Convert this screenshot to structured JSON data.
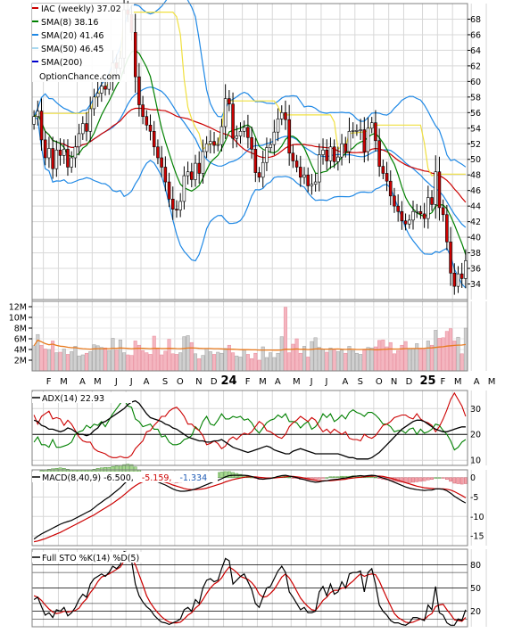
{
  "price_panel": {
    "legend": [
      {
        "label": "IAC (weekly) 37.02",
        "color": "#cc0000"
      },
      {
        "label": "SMA(8) 38.16",
        "color": "#008000"
      },
      {
        "label": "SMA(20) 41.46",
        "color": "#1e88e5"
      },
      {
        "label": "SMA(50) 46.45",
        "color": "#a8d8f0"
      },
      {
        "label": "SMA(200)",
        "color": "#0000cc"
      }
    ],
    "watermark": "OptionChance.com",
    "y_ticks": [
      34,
      36,
      38,
      40,
      42,
      44,
      46,
      48,
      50,
      52,
      54,
      56,
      58,
      60,
      62,
      64,
      66,
      68
    ],
    "ylim": [
      32,
      70
    ]
  },
  "volume_panel": {
    "ticks": [
      "2M",
      "4M",
      "6M",
      "8M",
      "10M",
      "12M"
    ],
    "tick_values": [
      2,
      4,
      6,
      8,
      10,
      12
    ]
  },
  "x_axis": {
    "labels": [
      {
        "text": "F",
        "i": 3
      },
      {
        "text": "M",
        "i": 7
      },
      {
        "text": "A",
        "i": 12
      },
      {
        "text": "M",
        "i": 16
      },
      {
        "text": "J",
        "i": 21
      },
      {
        "text": "J",
        "i": 25
      },
      {
        "text": "A",
        "i": 29
      },
      {
        "text": "S",
        "i": 34
      },
      {
        "text": "O",
        "i": 38
      },
      {
        "text": "N",
        "i": 43
      },
      {
        "text": "D",
        "i": 47
      },
      {
        "text": "24",
        "i": 51,
        "bold": true
      },
      {
        "text": "F",
        "i": 56
      },
      {
        "text": "M",
        "i": 60
      },
      {
        "text": "A",
        "i": 64
      },
      {
        "text": "M",
        "i": 69
      },
      {
        "text": "J",
        "i": 73
      },
      {
        "text": "J",
        "i": 77
      },
      {
        "text": "A",
        "i": 82
      },
      {
        "text": "S",
        "i": 86
      },
      {
        "text": "O",
        "i": 91
      },
      {
        "text": "N",
        "i": 95
      },
      {
        "text": "D",
        "i": 99
      },
      {
        "text": "25",
        "i": 104,
        "bold": true
      },
      {
        "text": "F",
        "i": 108
      },
      {
        "text": "M",
        "i": 112
      },
      {
        "text": "A",
        "i": 117
      },
      {
        "text": "M",
        "i": 121
      }
    ]
  },
  "adx_panel": {
    "title": "ADX(14) 22.93",
    "y_ticks": [
      10,
      20,
      30
    ],
    "ylim": [
      8,
      37
    ]
  },
  "macd_panel": {
    "title": "MACD(8,40,9) -6.500,",
    "value1": "-5.159,",
    "value1_color": "#cc0000",
    "value2": "-1.334",
    "value2_color": "#1e5ab4",
    "y_ticks": [
      0,
      -5,
      -10,
      -15
    ],
    "ylim": [
      -17.5,
      2
    ]
  },
  "sto_panel": {
    "title": "Full STO %K(14) %D(5)",
    "y_ticks": [
      20,
      50,
      80
    ],
    "ylim": [
      0,
      100
    ]
  },
  "chart_data": {
    "type": "candlestick",
    "title": "IAC (weekly)",
    "series": [
      {
        "name": "IAC (weekly)",
        "close": [
          55.5,
          56.2,
          52.5,
          50.2,
          51.4,
          48.8,
          51.2,
          50.5,
          51.3,
          49.0,
          50.2,
          51.6,
          53.3,
          54.6,
          53.6,
          56.5,
          58.0,
          58.5,
          59.4,
          59.0,
          60.2,
          62.4,
          61.7,
          63.0,
          69.2,
          68.6,
          66.3,
          60.6,
          57.0,
          55.5,
          54.4,
          53.6,
          51.6,
          50.2,
          49.0,
          47.1,
          44.9,
          43.6,
          43.5,
          44.6,
          47.9,
          48.4,
          47.4,
          49.5,
          48.2,
          51.0,
          52.0,
          52.3,
          51.8,
          51.9,
          54.2,
          57.8,
          57.1,
          52.7,
          53.0,
          53.6,
          54.1,
          52.8,
          51.3,
          48.3,
          47.7,
          49.6,
          51.5,
          51.9,
          53.5,
          55.2,
          56.0,
          55.1,
          50.8,
          49.8,
          49.0,
          47.7,
          48.0,
          46.6,
          46.8,
          47.1,
          50.6,
          51.2,
          49.8,
          51.6,
          49.7,
          50.3,
          52.0,
          51.0,
          53.6,
          53.7,
          53.7,
          53.8,
          51.0,
          54.0,
          54.7,
          52.4,
          49.1,
          48.2,
          47.2,
          45.3,
          44.0,
          43.3,
          42.1,
          41.7,
          42.2,
          43.3,
          43.3,
          43.0,
          42.4,
          45.1,
          44.2,
          48.4,
          43.8,
          42.9,
          39.4,
          35.4,
          33.7,
          35.3,
          34.7,
          37.0
        ]
      },
      {
        "name": "SMA(8)",
        "value": 38.16
      },
      {
        "name": "SMA(20)",
        "value": 41.46
      },
      {
        "name": "SMA(50)",
        "value": 46.45
      },
      {
        "name": "SMA(200)",
        "value": null
      }
    ],
    "volume_millions": [
      4.7,
      6.8,
      4.8,
      4.1,
      4.0,
      5.6,
      3.4,
      3.5,
      4.1,
      3.1,
      3.6,
      4.6,
      2.8,
      3.0,
      3.3,
      3.6,
      4.9,
      4.7,
      4.4,
      4.3,
      3.8,
      6.1,
      3.9,
      5.8,
      3.4,
      3.0,
      2.9,
      5.6,
      4.8,
      3.8,
      3.4,
      3.1,
      6.5,
      4.3,
      3.0,
      3.7,
      5.9,
      3.2,
      3.1,
      3.4,
      6.4,
      6.6,
      5.3,
      3.2,
      2.3,
      2.9,
      4.2,
      3.6,
      3.1,
      3.5,
      3.3,
      4.2,
      4.8,
      3.4,
      2.8,
      2.6,
      3.9,
      3.1,
      2.3,
      3.3,
      2.0,
      4.5,
      2.5,
      3.4,
      2.5,
      3.3,
      6.4,
      11.9,
      3.4,
      5.0,
      6.0,
      3.3,
      4.6,
      2.6,
      5.5,
      6.2,
      4.4,
      4.0,
      3.5,
      4.3,
      3.9,
      3.6,
      3.9,
      3.3,
      4.6,
      3.8,
      3.3,
      3.1,
      3.9,
      4.4,
      4.3,
      4.5,
      5.7,
      5.8,
      4.5,
      5.3,
      3.2,
      3.8,
      4.8,
      5.5,
      4.0,
      4.1,
      5.1,
      4.2,
      4.0,
      5.6,
      4.8,
      7.6,
      6.1,
      6.2,
      7.4,
      7.9,
      5.6,
      6.3,
      3.2,
      8.0
    ],
    "adx": [
      25.5,
      25.0,
      23.5,
      23.0,
      22.0,
      22.0,
      21.5,
      21.0,
      21.5,
      22.5,
      22.0,
      21.0,
      20.0,
      20.0,
      19.5,
      20.0,
      21.5,
      22.5,
      24.5,
      25.0,
      26.0,
      27.0,
      28.0,
      29.0,
      30.0,
      31.5,
      32.5,
      33.0,
      32.0,
      30.0,
      28.0,
      26.5,
      26.0,
      25.5,
      25.0,
      24.0,
      23.5,
      22.5,
      22.0,
      21.0,
      20.0,
      19.0,
      18.5,
      18.0,
      17.5,
      17.5,
      17.0,
      17.0,
      17.5,
      17.5,
      18.0,
      17.0,
      16.0,
      15.0,
      14.5,
      14.0,
      13.5,
      13.0,
      13.5,
      14.0,
      14.5,
      15.0,
      15.5,
      15.0,
      14.0,
      13.5,
      13.0,
      12.5,
      12.5,
      13.5,
      14.0,
      14.5,
      14.0,
      13.5,
      13.0,
      12.5,
      12.5,
      12.5,
      12.5,
      12.5,
      12.5,
      12.5,
      12.0,
      11.5,
      11.0,
      11.0,
      10.5,
      10.5,
      10.5,
      10.5,
      11.0,
      12.0,
      13.0,
      14.5,
      16.0,
      17.5,
      19.0,
      20.5,
      22.0,
      23.0,
      24.0,
      25.0,
      25.5,
      25.5,
      25.0,
      24.0,
      23.0,
      22.0,
      21.5,
      21.0,
      21.0,
      21.5,
      22.0,
      22.5,
      22.9,
      22.9
    ],
    "plus_di": [
      17.0,
      19.0,
      16.0,
      16.0,
      15.0,
      18.0,
      15.0,
      15.0,
      15.5,
      16.0,
      17.0,
      20.0,
      21.0,
      21.5,
      23.5,
      22.5,
      24.0,
      23.5,
      25.0,
      23.0,
      25.5,
      28.0,
      30.0,
      32.0,
      33.5,
      31.0,
      30.5,
      26.0,
      25.0,
      23.0,
      23.5,
      24.0,
      22.0,
      22.0,
      19.0,
      19.5,
      17.0,
      16.0,
      16.0,
      16.5,
      18.0,
      18.5,
      19.5,
      23.0,
      21.5,
      25.0,
      27.0,
      24.0,
      23.5,
      25.5,
      28.0,
      26.0,
      26.0,
      27.0,
      26.5,
      27.0,
      25.5,
      26.0,
      24.5,
      22.0,
      20.5,
      22.5,
      24.5,
      25.5,
      26.0,
      27.5,
      26.5,
      28.0,
      25.0,
      25.0,
      24.5,
      22.5,
      24.0,
      25.0,
      22.0,
      23.0,
      25.0,
      28.0,
      26.5,
      28.0,
      25.0,
      26.0,
      27.5,
      26.0,
      28.5,
      29.5,
      28.5,
      28.0,
      27.0,
      28.5,
      28.5,
      27.5,
      26.0,
      24.0,
      24.0,
      23.0,
      21.0,
      21.5,
      21.5,
      20.5,
      22.0,
      22.5,
      20.0,
      22.0,
      20.5,
      21.0,
      22.0,
      24.0,
      23.5,
      21.5,
      20.0,
      17.5,
      14.0,
      15.0,
      17.0,
      18.0
    ],
    "minus_di": [
      27.5,
      24.0,
      27.0,
      28.0,
      29.0,
      26.0,
      26.5,
      26.0,
      23.5,
      25.5,
      24.0,
      21.5,
      19.0,
      17.5,
      17.0,
      17.0,
      14.5,
      13.5,
      13.0,
      12.5,
      11.5,
      11.0,
      11.0,
      11.5,
      11.0,
      11.0,
      12.0,
      14.5,
      16.0,
      17.5,
      21.0,
      21.5,
      23.5,
      25.0,
      27.0,
      27.0,
      29.0,
      30.0,
      30.5,
      29.0,
      27.0,
      24.0,
      24.0,
      22.5,
      21.5,
      19.5,
      16.0,
      16.5,
      17.5,
      16.5,
      14.5,
      15.5,
      18.0,
      19.0,
      18.0,
      19.5,
      20.5,
      20.0,
      21.0,
      23.0,
      25.0,
      24.0,
      21.5,
      21.0,
      20.0,
      19.0,
      18.5,
      20.0,
      23.0,
      24.5,
      25.5,
      27.0,
      26.0,
      25.0,
      26.5,
      25.5,
      23.0,
      21.0,
      22.0,
      20.5,
      22.0,
      21.0,
      20.0,
      21.0,
      18.5,
      18.0,
      18.0,
      17.5,
      20.0,
      19.0,
      18.5,
      19.5,
      21.5,
      23.5,
      24.0,
      25.0,
      26.5,
      27.0,
      27.5,
      27.5,
      26.5,
      26.0,
      28.0,
      26.0,
      25.0,
      24.5,
      23.5,
      21.0,
      23.0,
      26.0,
      29.5,
      33.5,
      36.0,
      33.5,
      31.0,
      27.0
    ],
    "macd": [
      -15.8,
      -15.1,
      -14.5,
      -14.0,
      -13.5,
      -13.0,
      -12.5,
      -12.0,
      -11.6,
      -11.3,
      -11.0,
      -10.5,
      -10.0,
      -9.5,
      -9.0,
      -8.5,
      -7.8,
      -7.0,
      -6.3,
      -5.6,
      -5.0,
      -4.2,
      -3.4,
      -2.6,
      -1.6,
      -0.7,
      0.0,
      0.2,
      0.1,
      0.0,
      -0.2,
      -0.5,
      -0.8,
      -1.1,
      -1.5,
      -1.9,
      -2.4,
      -2.9,
      -3.3,
      -3.5,
      -3.5,
      -3.4,
      -3.2,
      -2.9,
      -2.6,
      -2.2,
      -1.8,
      -1.4,
      -1.0,
      -0.7,
      -0.3,
      0.2,
      0.5,
      0.6,
      0.6,
      0.6,
      0.6,
      0.5,
      0.3,
      0.0,
      -0.3,
      -0.4,
      -0.3,
      -0.2,
      0.0,
      0.3,
      0.5,
      0.6,
      0.4,
      0.2,
      0.0,
      -0.3,
      -0.5,
      -0.8,
      -1.0,
      -1.2,
      -1.1,
      -0.9,
      -0.8,
      -0.6,
      -0.5,
      -0.4,
      -0.2,
      -0.1,
      0.1,
      0.3,
      0.4,
      0.5,
      0.4,
      0.5,
      0.6,
      0.5,
      0.2,
      -0.1,
      -0.4,
      -0.8,
      -1.2,
      -1.6,
      -2.0,
      -2.4,
      -2.7,
      -2.9,
      -3.1,
      -3.2,
      -3.3,
      -3.2,
      -3.2,
      -2.9,
      -2.9,
      -3.0,
      -3.4,
      -4.0,
      -4.8,
      -5.4,
      -6.0,
      -6.5
    ],
    "macd_signal": [
      -16.5,
      -16.3,
      -16.0,
      -15.7,
      -15.3,
      -14.9,
      -14.5,
      -14.1,
      -13.6,
      -13.1,
      -12.6,
      -12.1,
      -11.6,
      -11.1,
      -10.6,
      -10.1,
      -9.6,
      -9.0,
      -8.4,
      -7.8,
      -7.2,
      -6.6,
      -5.9,
      -5.2,
      -4.4,
      -3.6,
      -2.8,
      -2.1,
      -1.5,
      -1.1,
      -0.8,
      -0.7,
      -0.7,
      -0.8,
      -1.0,
      -1.2,
      -1.5,
      -1.9,
      -2.2,
      -2.5,
      -2.8,
      -3.0,
      -3.1,
      -3.1,
      -3.0,
      -2.9,
      -2.7,
      -2.4,
      -2.1,
      -1.8,
      -1.5,
      -1.1,
      -0.8,
      -0.5,
      -0.3,
      -0.1,
      0.1,
      0.2,
      0.2,
      0.2,
      0.1,
      0.0,
      -0.1,
      -0.1,
      -0.1,
      0.0,
      0.1,
      0.2,
      0.3,
      0.3,
      0.2,
      0.1,
      -0.1,
      -0.3,
      -0.5,
      -0.7,
      -0.8,
      -0.8,
      -0.8,
      -0.8,
      -0.7,
      -0.6,
      -0.5,
      -0.4,
      -0.2,
      -0.1,
      0.0,
      0.1,
      0.2,
      0.3,
      0.4,
      0.4,
      0.4,
      0.3,
      0.1,
      -0.1,
      -0.4,
      -0.7,
      -1.0,
      -1.3,
      -1.6,
      -1.9,
      -2.2,
      -2.4,
      -2.6,
      -2.7,
      -2.8,
      -2.9,
      -2.9,
      -2.9,
      -3.0,
      -3.2,
      -3.6,
      -4.1,
      -4.6,
      -5.2
    ],
    "sto_k": [
      35,
      38,
      26,
      15,
      18,
      12,
      22,
      20,
      25,
      14,
      18,
      25,
      35,
      42,
      38,
      55,
      62,
      65,
      68,
      65,
      70,
      78,
      75,
      80,
      97,
      95,
      85,
      55,
      40,
      32,
      26,
      22,
      15,
      10,
      6,
      5,
      3,
      5,
      7,
      10,
      22,
      25,
      20,
      35,
      30,
      50,
      60,
      62,
      58,
      60,
      75,
      88,
      85,
      55,
      60,
      65,
      68,
      58,
      48,
      30,
      25,
      38,
      50,
      52,
      62,
      72,
      78,
      70,
      45,
      38,
      30,
      22,
      25,
      18,
      18,
      20,
      45,
      52,
      40,
      55,
      42,
      45,
      58,
      50,
      68,
      70,
      70,
      72,
      45,
      70,
      75,
      55,
      28,
      20,
      15,
      8,
      5,
      5,
      3,
      2,
      5,
      12,
      12,
      10,
      8,
      28,
      22,
      52,
      18,
      15,
      5,
      2,
      2,
      10,
      8,
      22
    ],
    "sto_d": [
      40,
      38,
      34,
      28,
      23,
      19,
      17,
      18,
      20,
      19,
      20,
      21,
      24,
      31,
      36,
      44,
      50,
      58,
      64,
      66,
      68,
      71,
      74,
      77,
      85,
      88,
      89,
      80,
      67,
      54,
      40,
      31,
      24,
      18,
      13,
      9,
      6,
      5,
      5,
      6,
      10,
      15,
      18,
      24,
      28,
      35,
      43,
      50,
      55,
      58,
      63,
      71,
      77,
      74,
      70,
      65,
      63,
      61,
      57,
      51,
      42,
      38,
      39,
      43,
      48,
      56,
      64,
      68,
      63,
      55,
      46,
      37,
      31,
      26,
      22,
      21,
      27,
      34,
      38,
      44,
      47,
      47,
      50,
      50,
      55,
      59,
      64,
      68,
      65,
      67,
      68,
      67,
      59,
      48,
      37,
      27,
      17,
      12,
      9,
      6,
      5,
      6,
      8,
      10,
      9,
      14,
      17,
      26,
      28,
      29,
      22,
      16,
      9,
      8,
      7,
      12
    ]
  }
}
